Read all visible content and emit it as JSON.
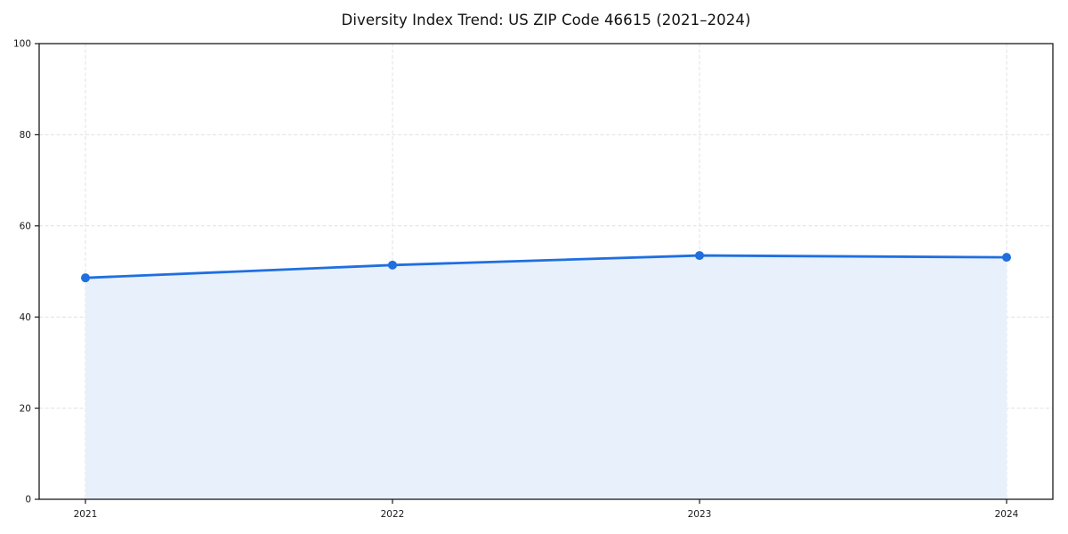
{
  "title": "Diversity Index Trend: US ZIP Code 46615 (2021–2024)",
  "chart_data": {
    "type": "area",
    "title": "Diversity Index Trend: US ZIP Code 46615 (2021–2024)",
    "categories": [
      "2021",
      "2022",
      "2023",
      "2024"
    ],
    "series": [
      {
        "name": "Diversity Index",
        "values": [
          48.6,
          51.4,
          53.5,
          53.1
        ]
      }
    ],
    "xlabel": "",
    "ylabel": "",
    "ylim": [
      0,
      100
    ],
    "yticks": [
      0,
      20,
      40,
      60,
      80,
      100
    ],
    "grid": "dashed both horizontal and vertical",
    "legend_position": "none",
    "marker": "circle",
    "colors": {
      "line": "#1f6fe0",
      "marker": "#1f6fe0",
      "fill": "#e8f0fc",
      "grid": "#e1e1e4",
      "axis": "#1a1a1a",
      "text": "#1a1a1a",
      "background": "#ffffff"
    }
  }
}
